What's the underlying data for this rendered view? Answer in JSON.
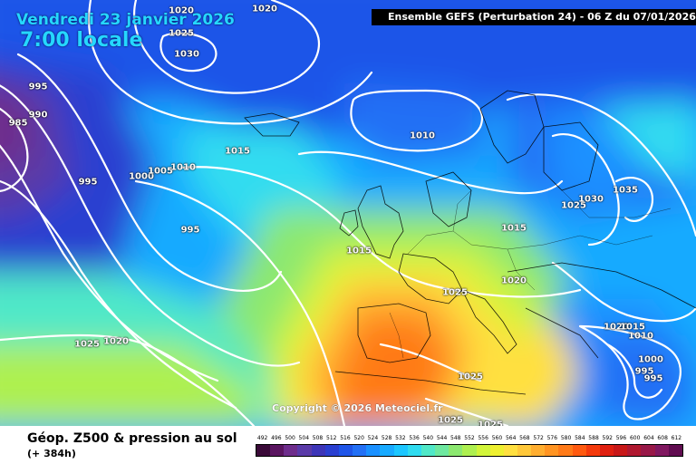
{
  "header": {
    "date": "Vendredi 23 janvier 2026",
    "local_time": "7:00 locale",
    "model_banner": "Ensemble GEFS  (Perturbation 24)  -  06 Z du 07/01/2026"
  },
  "copyright": "Copyright © 2026 Meteociel.fr",
  "footer": {
    "product_title": "Géop. Z500 & pression au sol",
    "forecast_hour": "(+ 384h)"
  },
  "color_scale": {
    "labels": [
      "492",
      "496",
      "500",
      "504",
      "508",
      "512",
      "516",
      "520",
      "524",
      "528",
      "532",
      "536",
      "540",
      "544",
      "548",
      "552",
      "556",
      "560",
      "564",
      "568",
      "572",
      "576",
      "580",
      "584",
      "588",
      "592",
      "596",
      "600",
      "604",
      "608",
      "612"
    ],
    "colors": [
      "#3a0a38",
      "#5a1560",
      "#6e2d8c",
      "#5a3aa8",
      "#3d35b8",
      "#2a3fd0",
      "#1f55e8",
      "#2370f5",
      "#1a90ff",
      "#18aaff",
      "#1cc6ff",
      "#30dcf0",
      "#50e8c8",
      "#6ee8a0",
      "#8ce870",
      "#aef050",
      "#d2f53a",
      "#eef030",
      "#ffe040",
      "#ffc83a",
      "#ffae30",
      "#ff9422",
      "#ff7a18",
      "#ff5a10",
      "#f43a0c",
      "#e02010",
      "#c81818",
      "#b01830",
      "#981848",
      "#801860",
      "#600c50"
    ]
  },
  "isobar_labels": [
    "1020",
    "1020",
    "1025",
    "1030",
    "995",
    "990",
    "985",
    "995",
    "1000",
    "1005",
    "1010",
    "1015",
    "995",
    "1010",
    "1015",
    "1025",
    "1030",
    "1035",
    "1015",
    "1025",
    "1020",
    "1025",
    "1020",
    "1020",
    "1015",
    "1010",
    "1000",
    "995",
    "995",
    "1025",
    "1025",
    "1025"
  ]
}
